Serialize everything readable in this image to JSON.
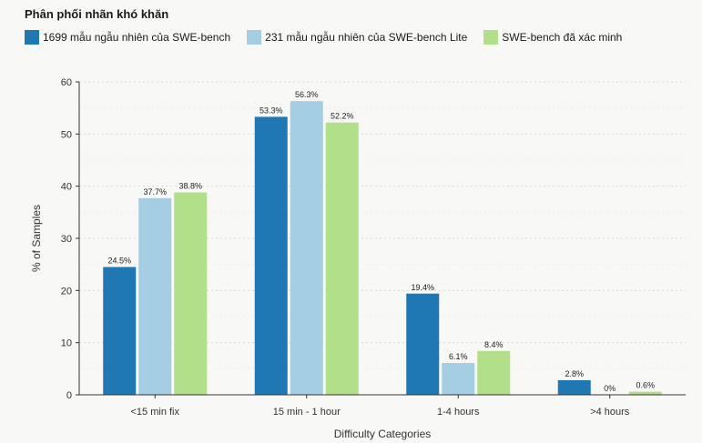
{
  "chart_data": {
    "type": "bar",
    "title": "Phân phối nhãn khó khăn",
    "xlabel": "Difficulty Categories",
    "ylabel": "% of Samples",
    "ylim": [
      0,
      60
    ],
    "yticks": [
      0,
      10,
      20,
      30,
      40,
      50,
      60
    ],
    "grid": true,
    "legend_position": "top-left",
    "categories": [
      "<15 min fix",
      "15 min - 1 hour",
      "1-4 hours",
      ">4 hours"
    ],
    "series": [
      {
        "name": "1699 mẫu ngẫu nhiên của SWE-bench",
        "color": "#1f77b4",
        "values": [
          24.5,
          53.3,
          19.4,
          2.8
        ],
        "labels": [
          "24.5%",
          "53.3%",
          "19.4%",
          "2.8%"
        ]
      },
      {
        "name": "231 mẫu ngẫu nhiên của SWE-bench Lite",
        "color": "#a6cee3",
        "values": [
          37.7,
          56.3,
          6.1,
          0
        ],
        "labels": [
          "37.7%",
          "56.3%",
          "6.1%",
          "0%"
        ]
      },
      {
        "name": "SWE-bench đã xác minh",
        "color": "#b2df8a",
        "values": [
          38.8,
          52.2,
          8.4,
          0.6
        ],
        "labels": [
          "38.8%",
          "52.2%",
          "8.4%",
          "0.6%"
        ]
      }
    ]
  }
}
